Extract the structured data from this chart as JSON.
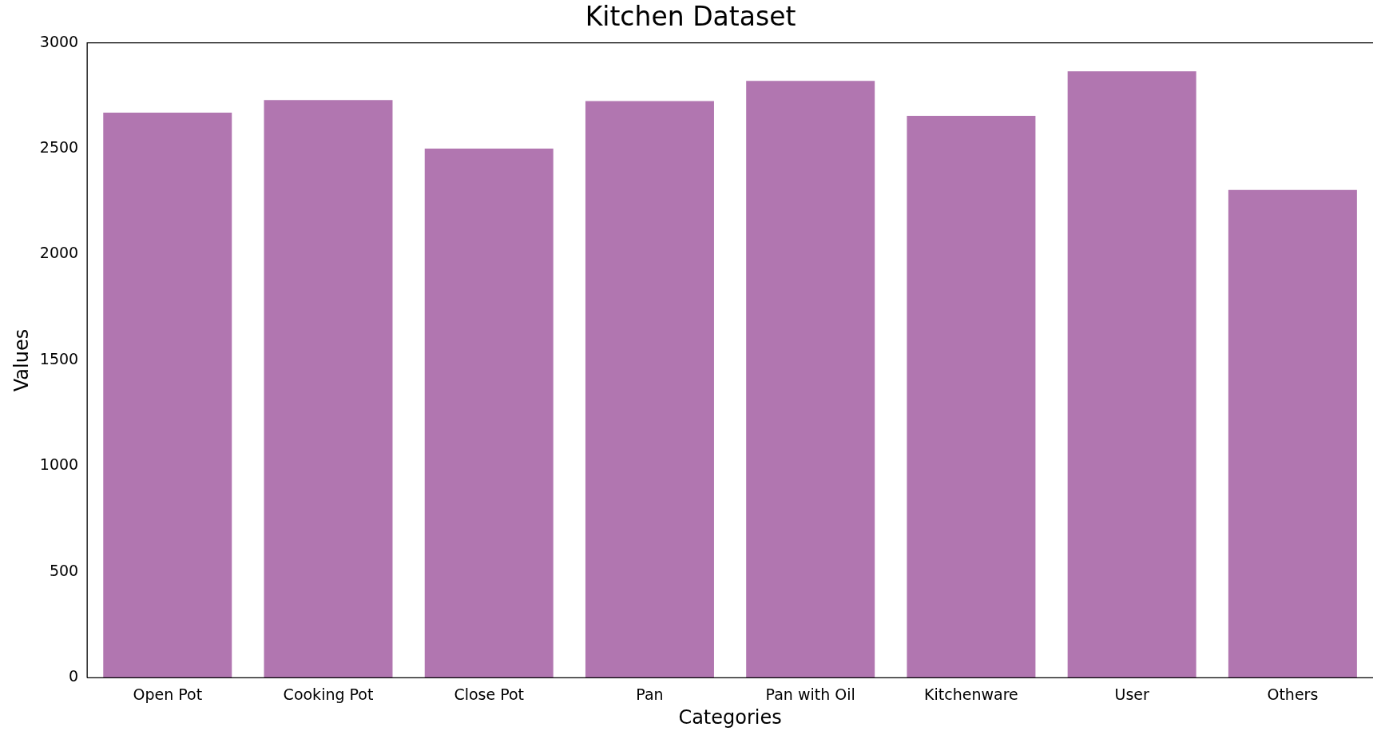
{
  "chart_data": {
    "type": "bar",
    "title": "Kitchen Dataset",
    "xlabel": "Categories",
    "ylabel": "Values",
    "categories": [
      "Open Pot",
      "Cooking Pot",
      "Close Pot",
      "Pan",
      "Pan with Oil",
      "Kitchenware",
      "User",
      "Others"
    ],
    "values": [
      2670,
      2730,
      2500,
      2725,
      2820,
      2655,
      2865,
      2305
    ],
    "color": "#b176b0",
    "ylim": [
      0,
      3000
    ],
    "yticks": [
      0,
      500,
      1000,
      1500,
      2000,
      2500,
      3000
    ],
    "grid": false,
    "legend": false
  }
}
